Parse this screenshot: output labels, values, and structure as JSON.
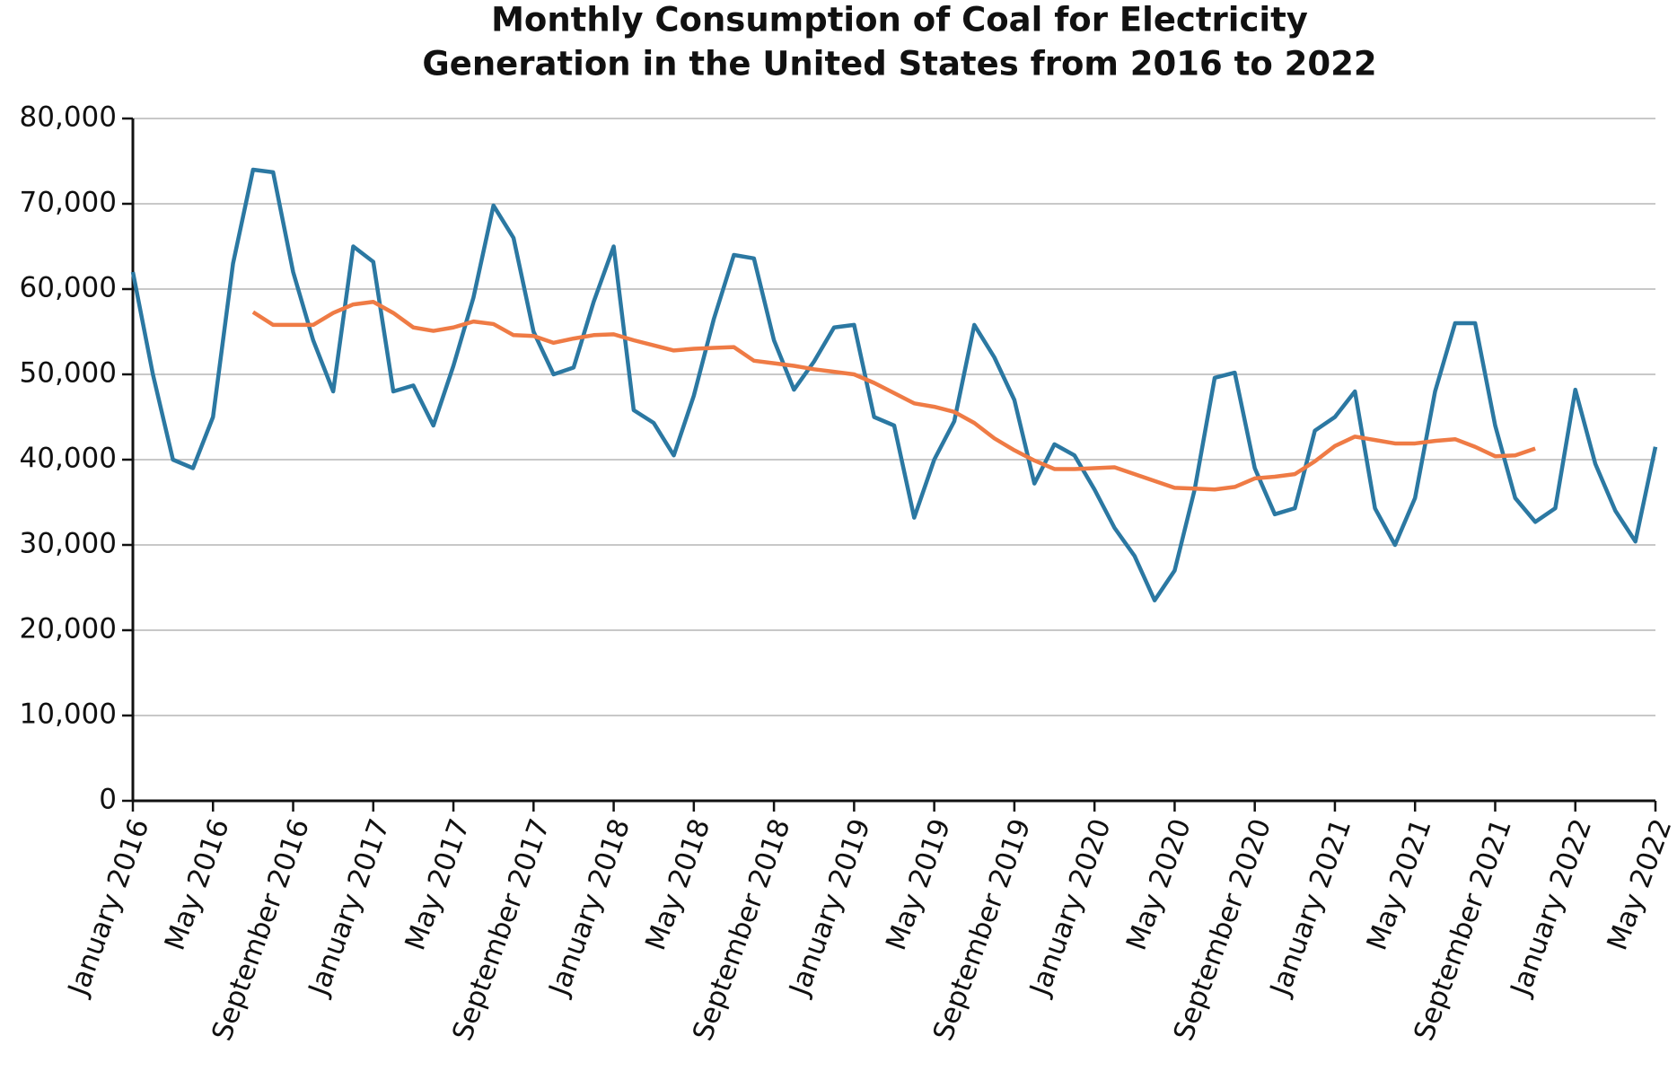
{
  "chart_data": {
    "type": "line",
    "title": [
      "Monthly Consumption of Coal for Electricity",
      "Generation in the United States from 2016 to 2022"
    ],
    "categories": [
      "January 2016",
      null,
      null,
      null,
      "May 2016",
      null,
      null,
      null,
      "September 2016",
      null,
      null,
      null,
      "January 2017",
      null,
      null,
      null,
      "May 2017",
      null,
      null,
      null,
      "September 2017",
      null,
      null,
      null,
      "January 2018",
      null,
      null,
      null,
      "May 2018",
      null,
      null,
      null,
      "September 2018",
      null,
      null,
      null,
      "January 2019",
      null,
      null,
      null,
      "May 2019",
      null,
      null,
      null,
      "September 2019",
      null,
      null,
      null,
      "January 2020",
      null,
      null,
      null,
      "May 2020",
      null,
      null,
      null,
      "September 2020",
      null,
      null,
      null,
      "January 2021",
      null,
      null,
      null,
      "May 2021",
      null,
      null,
      null,
      "September 2021",
      null,
      null,
      null,
      "January 2022",
      null,
      null,
      null,
      "May 2022"
    ],
    "series": [
      {
        "color": "#2b78a2",
        "values": [
          62000,
          50000,
          40000,
          39000,
          45000,
          63000,
          74000,
          73700,
          62000,
          54000,
          48000,
          65000,
          63200,
          48000,
          48700,
          44000,
          51000,
          59000,
          69800,
          66000,
          55000,
          50000,
          50800,
          58500,
          65000,
          45800,
          44300,
          40500,
          47500,
          56500,
          64000,
          63600,
          54000,
          48200,
          51500,
          55500,
          55800,
          45000,
          44000,
          33200,
          40000,
          44500,
          55800,
          52000,
          47000,
          37200,
          41800,
          40500,
          36500,
          32000,
          28700,
          23500,
          27000,
          36500,
          49600,
          50200,
          39000,
          33600,
          34300,
          43400,
          45000,
          48000,
          34300,
          30000,
          35500,
          48000,
          56000,
          56000,
          44000,
          35500,
          32700,
          34300,
          48200,
          39500,
          34000,
          30400,
          41500
        ]
      },
      {
        "color": "#ef7b45",
        "values": [
          null,
          null,
          null,
          null,
          null,
          null,
          57300,
          55800,
          55800,
          55800,
          57200,
          58200,
          58500,
          57200,
          55500,
          55100,
          55500,
          56200,
          55900,
          54600,
          54500,
          53700,
          54200,
          54600,
          54700,
          54000,
          53400,
          52800,
          53000,
          53100,
          53200,
          51600,
          51300,
          51000,
          50600,
          50300,
          50000,
          49000,
          47800,
          46600,
          46200,
          45600,
          44300,
          42500,
          41100,
          39900,
          38900,
          38900,
          39000,
          39100,
          38300,
          37500,
          36700,
          36600,
          36500,
          36800,
          37800,
          38000,
          38300,
          39800,
          41600,
          42700,
          42300,
          41900,
          41900,
          42200,
          42400,
          41500,
          40400,
          40500,
          41300,
          null,
          null,
          null,
          null,
          null,
          null
        ]
      }
    ],
    "ylim": [
      0,
      80000
    ],
    "yticks": [
      0,
      {
        "value": 10000,
        "label": "10,000"
      },
      {
        "value": 20000,
        "label": "20,000"
      },
      {
        "value": 30000,
        "label": "30,000"
      },
      {
        "value": 40000,
        "label": "40,000"
      },
      {
        "value": 50000,
        "label": "50,000"
      },
      {
        "value": 60000,
        "label": "60,000"
      },
      {
        "value": 70000,
        "label": "70,000"
      },
      {
        "value": 80000,
        "label": "80,000"
      }
    ],
    "grid": true
  }
}
